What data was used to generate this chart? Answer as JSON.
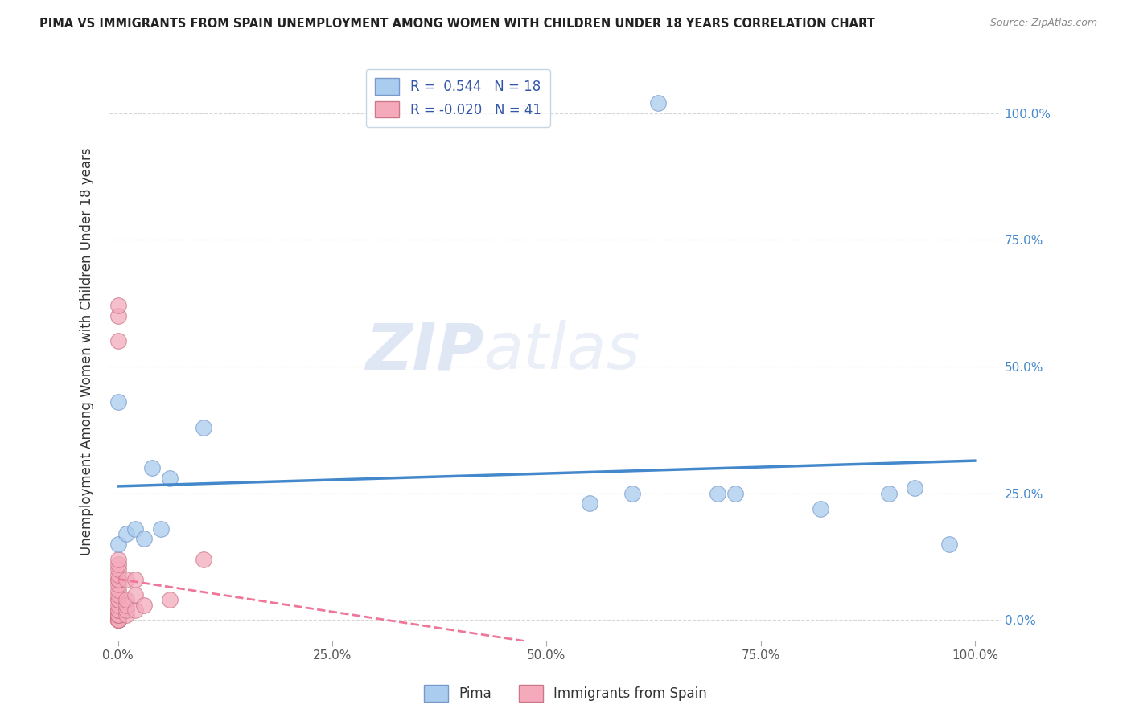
{
  "title": "PIMA VS IMMIGRANTS FROM SPAIN UNEMPLOYMENT AMONG WOMEN WITH CHILDREN UNDER 18 YEARS CORRELATION CHART",
  "source": "Source: ZipAtlas.com",
  "ylabel": "Unemployment Among Women with Children Under 18 years",
  "xlim": [
    -0.01,
    1.03
  ],
  "ylim": [
    -0.04,
    1.1
  ],
  "xticks": [
    0.0,
    0.25,
    0.5,
    0.75,
    1.0
  ],
  "xticklabels": [
    "0.0%",
    "25.0%",
    "50.0%",
    "75.0%",
    "100.0%"
  ],
  "yticks": [
    0.0,
    0.25,
    0.5,
    0.75,
    1.0
  ],
  "yticklabels": [
    "0.0%",
    "25.0%",
    "50.0%",
    "75.0%",
    "100.0%"
  ],
  "pima_color": "#aaccee",
  "pima_edge_color": "#7799cc",
  "spain_color": "#f4aabb",
  "spain_edge_color": "#cc7788",
  "pima_R": 0.544,
  "pima_N": 18,
  "spain_R": -0.02,
  "spain_N": 41,
  "pima_line_color": "#4488cc",
  "spain_line_color": "#ee7799",
  "watermark_zip": "ZIP",
  "watermark_atlas": "atlas",
  "pima_x": [
    0.0,
    0.0,
    0.01,
    0.02,
    0.03,
    0.04,
    0.05,
    0.06,
    0.1,
    0.55,
    0.6,
    0.63,
    0.7,
    0.72,
    0.82,
    0.9,
    0.93,
    0.97
  ],
  "pima_y": [
    0.15,
    0.43,
    0.17,
    0.18,
    0.16,
    0.3,
    0.18,
    0.28,
    0.38,
    0.23,
    0.25,
    1.02,
    0.25,
    0.25,
    0.22,
    0.25,
    0.26,
    0.15
  ],
  "spain_x": [
    0.0,
    0.0,
    0.0,
    0.0,
    0.0,
    0.0,
    0.0,
    0.0,
    0.0,
    0.0,
    0.0,
    0.0,
    0.0,
    0.0,
    0.0,
    0.0,
    0.0,
    0.0,
    0.0,
    0.0,
    0.0,
    0.0,
    0.0,
    0.0,
    0.0,
    0.0,
    0.0,
    0.0,
    0.0,
    0.0,
    0.01,
    0.01,
    0.01,
    0.01,
    0.01,
    0.02,
    0.02,
    0.02,
    0.03,
    0.06,
    0.1
  ],
  "spain_y": [
    0.0,
    0.0,
    0.0,
    0.0,
    0.0,
    0.0,
    0.0,
    0.0,
    0.0,
    0.01,
    0.01,
    0.01,
    0.01,
    0.02,
    0.02,
    0.03,
    0.04,
    0.04,
    0.05,
    0.06,
    0.07,
    0.08,
    0.08,
    0.09,
    0.1,
    0.11,
    0.12,
    0.55,
    0.6,
    0.62,
    0.01,
    0.02,
    0.03,
    0.04,
    0.08,
    0.02,
    0.05,
    0.08,
    0.03,
    0.04,
    0.12
  ]
}
